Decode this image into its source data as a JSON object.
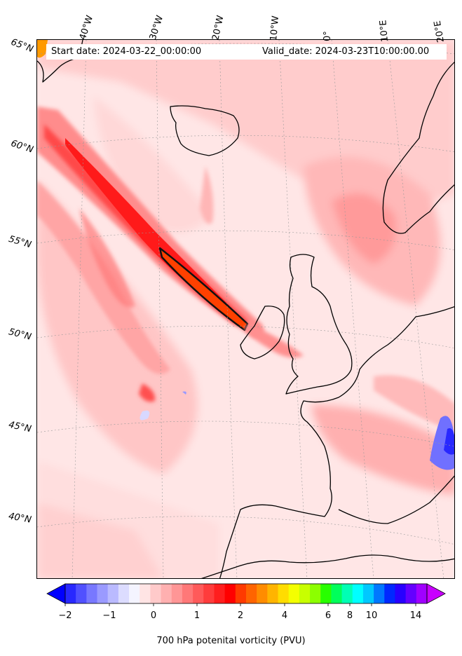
{
  "map": {
    "start_date": "Start date: 2024-03-22_00:00:00",
    "valid_date": "Valid_date: 2024-03-23T10:00:00.00",
    "lon_labels": [
      "40°W",
      "30°W",
      "20°W",
      "10°W",
      "0°",
      "10°E",
      "20°E"
    ],
    "lat_labels": [
      "65°N",
      "60°N",
      "55°N",
      "50°N",
      "45°N",
      "40°N"
    ]
  },
  "colorbar": {
    "title": "700 hPa potenital vorticity (PVU)",
    "tick_labels": [
      "−2",
      "−1",
      "0",
      "1",
      "2",
      "4",
      "6",
      "8",
      "10",
      "14"
    ],
    "colors": [
      "#0000ff",
      "#2828ff",
      "#5050ff",
      "#7878ff",
      "#9a9aff",
      "#babaff",
      "#dcdcff",
      "#f4f4ff",
      "#ffe4e4",
      "#ffcaca",
      "#ffb0b0",
      "#ff9696",
      "#ff7878",
      "#ff5a5a",
      "#ff3c3c",
      "#ff1e1e",
      "#ff0000",
      "#ff3a00",
      "#ff6400",
      "#ff8c00",
      "#ffb400",
      "#ffdc00",
      "#f4ff00",
      "#c8ff00",
      "#8cff00",
      "#28ff00",
      "#00ff5a",
      "#00ffb4",
      "#00ffff",
      "#00c8ff",
      "#0078ff",
      "#0028ff",
      "#2800ff",
      "#6400ff",
      "#a000ff",
      "#c800ff"
    ]
  }
}
